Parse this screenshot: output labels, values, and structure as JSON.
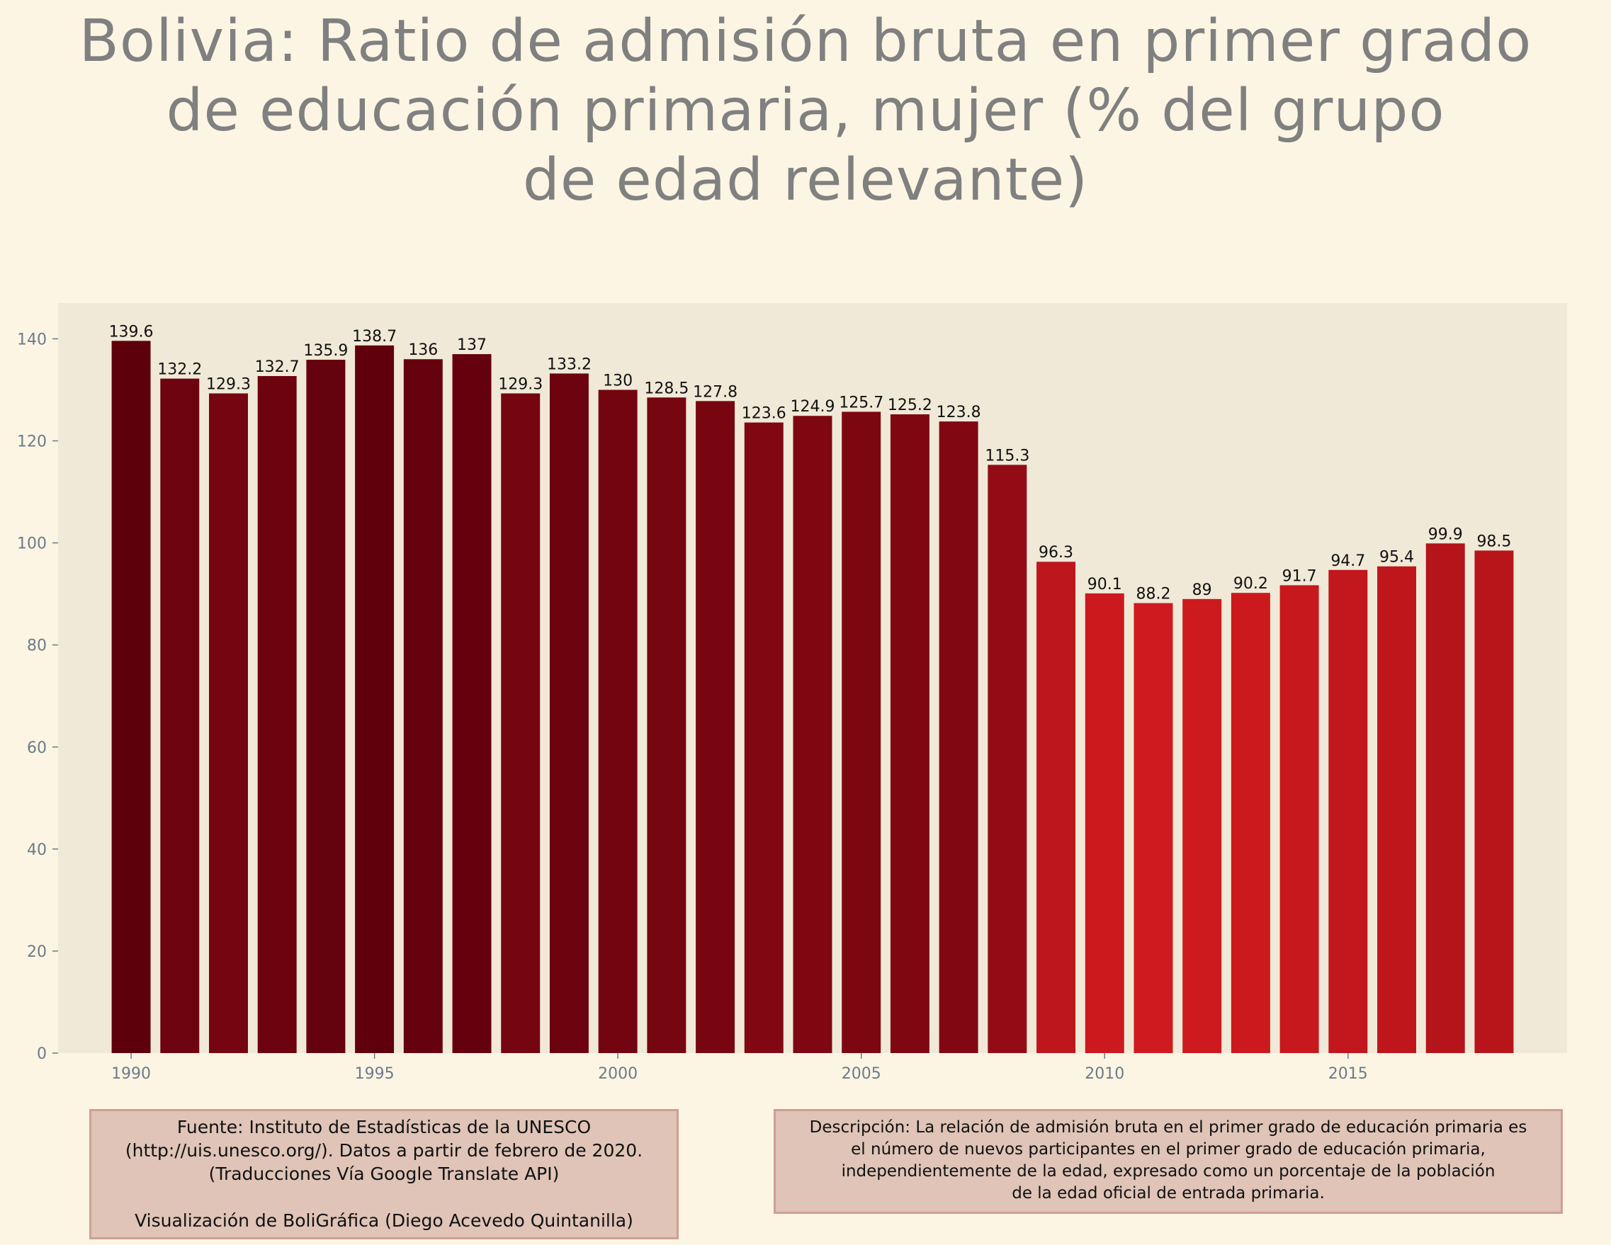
{
  "title": {
    "lines": [
      "Bolivia:  Ratio de admisión bruta en primer grado",
      "de educación primaria, mujer (% del grupo",
      "de edad relevante)"
    ]
  },
  "chart_data": {
    "type": "bar",
    "title": "Bolivia:  Ratio de admisión bruta en primer grado de educación primaria, mujer (% del grupo de edad relevante)",
    "xlabel": "",
    "ylabel": "",
    "categories": [
      1990,
      1991,
      1992,
      1993,
      1994,
      1995,
      1996,
      1997,
      1998,
      1999,
      2000,
      2001,
      2002,
      2003,
      2004,
      2005,
      2006,
      2007,
      2008,
      2009,
      2010,
      2011,
      2012,
      2013,
      2014,
      2015,
      2016,
      2017,
      2018
    ],
    "values": [
      139.6,
      132.2,
      129.3,
      132.7,
      135.9,
      138.7,
      136,
      137,
      129.3,
      133.2,
      130,
      128.5,
      127.8,
      123.6,
      124.9,
      125.7,
      125.2,
      123.8,
      115.3,
      96.3,
      90.1,
      88.2,
      89,
      90.2,
      91.7,
      94.7,
      95.4,
      99.9,
      98.5
    ],
    "data_labels": [
      "139.6",
      "132.2",
      "129.3",
      "132.7",
      "135.9",
      "138.7",
      "136",
      "137",
      "129.3",
      "133.2",
      "130",
      "128.5",
      "127.8",
      "123.6",
      "124.9",
      "125.7",
      "125.2",
      "123.8",
      "115.3",
      "96.3",
      "90.1",
      "88.2",
      "89",
      "90.2",
      "91.7",
      "94.7",
      "95.4",
      "99.9",
      "98.5"
    ],
    "x_ticks": [
      1990,
      1995,
      2000,
      2005,
      2010,
      2015
    ],
    "x_tick_labels": [
      "1990",
      "1995",
      "2000",
      "2005",
      "2010",
      "2015"
    ],
    "y_ticks": [
      0,
      20,
      40,
      60,
      80,
      100,
      120,
      140
    ],
    "y_tick_labels": [
      "0",
      "20",
      "40",
      "60",
      "80",
      "100",
      "120",
      "140"
    ],
    "xlim": [
      1988.5,
      2019.5
    ],
    "ylim": [
      0,
      147
    ],
    "grid": false,
    "legend": "none",
    "colors": {
      "background": "#fdf5e3",
      "plot_background": "#f1e9d7",
      "bar_high": "#5e000c",
      "bar_low": "#cf1a1f",
      "tick_text": "#6b7b8c",
      "title_text": "#808080"
    }
  },
  "source_note": {
    "lines": [
      "Fuente: Instituto de Estadísticas de la UNESCO",
      "(http://uis.unesco.org/). Datos a partir de febrero de 2020.",
      "(Traducciones Vía Google Translate API)",
      "",
      "Visualización de BoliGráfica (Diego Acevedo Quintanilla)"
    ]
  },
  "description_note": {
    "lines": [
      "Descripción: La relación de admisión bruta en el primer grado de educación primaria es",
      "el número de nuevos participantes en el primer grado de educación primaria,",
      "independientemente de la edad, expresado como un porcentaje de la población",
      "de la edad oficial de entrada primaria."
    ]
  }
}
